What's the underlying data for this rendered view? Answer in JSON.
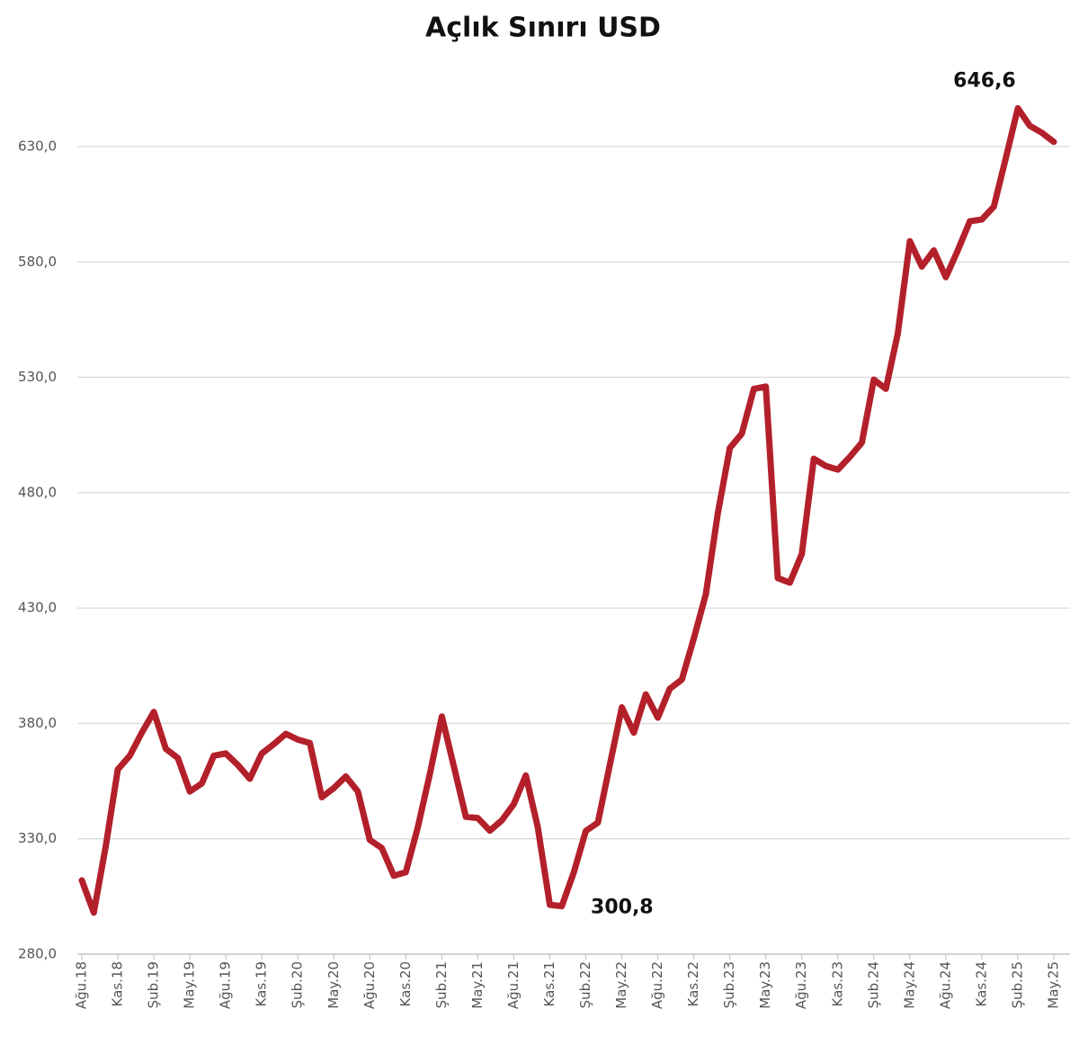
{
  "chart_data": {
    "type": "line",
    "title": "Açlık Sınırı USD",
    "categories": [
      "Ağu.18",
      null,
      null,
      "Kas.18",
      null,
      null,
      "Şub.19",
      null,
      null,
      "May.19",
      null,
      null,
      "Ağu.19",
      null,
      null,
      "Kas.19",
      null,
      null,
      "Şub.20",
      null,
      null,
      "May.20",
      null,
      null,
      "Ağu.20",
      null,
      null,
      "Kas.20",
      null,
      null,
      "Şub.21",
      null,
      null,
      "May.21",
      null,
      null,
      "Ağu.21",
      null,
      null,
      "Kas.21",
      null,
      null,
      "Şub.22",
      null,
      null,
      "May.22",
      null,
      null,
      "Ağu.22",
      null,
      null,
      "Kas.22",
      null,
      null,
      "Şub.23",
      null,
      null,
      "May.23",
      null,
      null,
      "Ağu.23",
      null,
      null,
      "Kas.23",
      null,
      null,
      "Şub.24",
      null,
      null,
      "May.24",
      null,
      null,
      "Ağu.24",
      null,
      null,
      "Kas.24",
      null,
      null,
      "Şub.25",
      null,
      null,
      "May.25"
    ],
    "values": [
      312,
      298,
      327,
      360,
      366,
      376,
      385,
      369,
      365,
      350.5,
      354,
      366,
      367,
      362,
      356,
      367,
      371,
      375.5,
      373,
      371.5,
      348,
      352,
      357,
      350.5,
      329.5,
      326,
      314,
      315.5,
      335,
      358,
      383,
      361.5,
      339.5,
      339,
      333.5,
      338,
      345,
      357.5,
      335,
      301.4,
      300.8,
      315.5,
      333.4,
      337,
      362,
      387,
      376,
      392.6,
      382.5,
      395,
      399,
      416.8,
      436,
      471,
      499.4,
      505.6,
      525,
      526,
      443,
      441,
      453.4,
      494.7,
      491.6,
      490,
      495.5,
      501.7,
      529,
      525,
      549,
      589,
      578,
      585,
      573.4,
      585,
      597.6,
      598.4,
      604,
      625,
      646.6,
      639,
      636,
      632
    ],
    "value_labels": [
      null,
      null,
      null,
      null,
      null,
      null,
      null,
      null,
      null,
      null,
      null,
      null,
      null,
      null,
      null,
      null,
      null,
      null,
      null,
      null,
      null,
      null,
      null,
      null,
      null,
      null,
      null,
      null,
      null,
      null,
      null,
      null,
      null,
      null,
      null,
      null,
      null,
      null,
      null,
      null,
      "300,8",
      null,
      null,
      null,
      null,
      null,
      null,
      null,
      null,
      null,
      null,
      null,
      null,
      null,
      null,
      null,
      null,
      null,
      null,
      null,
      null,
      null,
      null,
      null,
      null,
      null,
      null,
      null,
      null,
      null,
      null,
      null,
      null,
      null,
      null,
      null,
      null,
      null,
      "646,6",
      null,
      null,
      null
    ],
    "color": "#b3202a",
    "ylim": [
      280,
      660
    ],
    "yticks": [
      {
        "value": 280,
        "label": "280,0"
      },
      {
        "value": 330,
        "label": "330,0"
      },
      {
        "value": 380,
        "label": "380,0"
      },
      {
        "value": 430,
        "label": "430,0"
      },
      {
        "value": 480,
        "label": "480,0"
      },
      {
        "value": 530,
        "label": "530,0"
      },
      {
        "value": 580,
        "label": "580,0"
      },
      {
        "value": 630,
        "label": "630,0"
      }
    ],
    "grid": true
  }
}
